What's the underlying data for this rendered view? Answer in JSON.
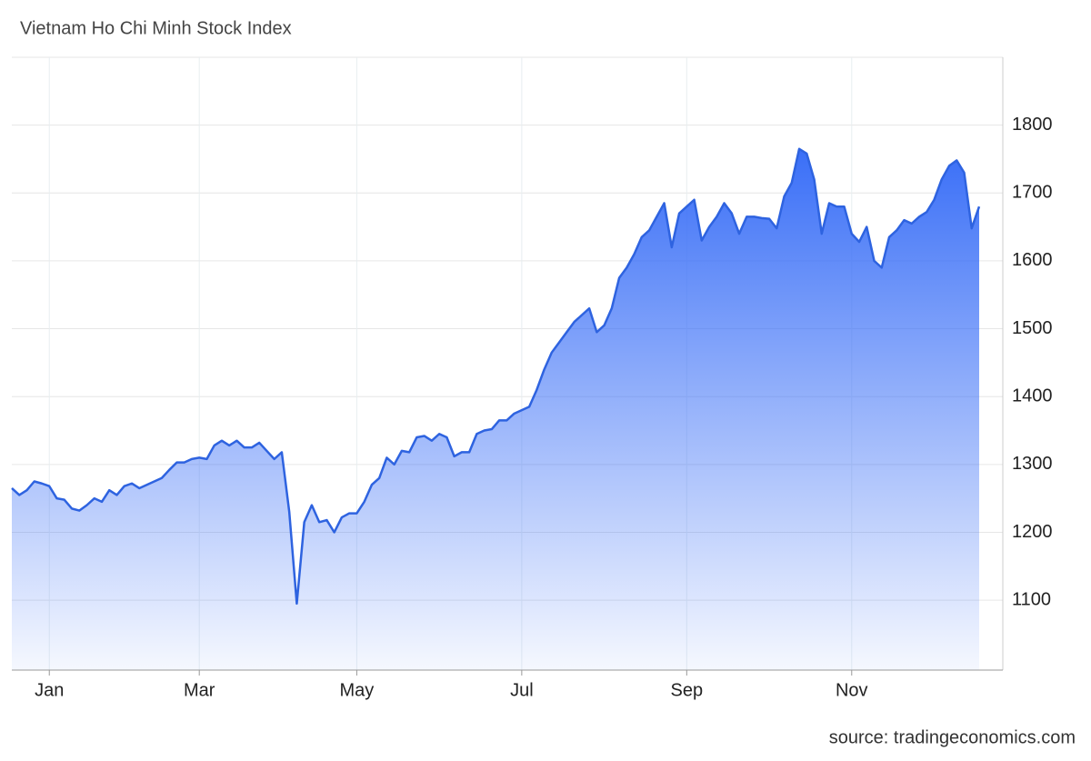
{
  "chart_data": {
    "type": "area",
    "title": "Vietnam Ho Chi Minh Stock Index",
    "source": "source: tradingeconomics.com",
    "categories": [
      null,
      null,
      null,
      null,
      null,
      "Jan",
      null,
      null,
      null,
      null,
      null,
      null,
      null,
      null,
      null,
      null,
      null,
      null,
      null,
      null,
      null,
      null,
      null,
      null,
      null,
      "Mar",
      null,
      null,
      null,
      null,
      null,
      null,
      null,
      null,
      null,
      null,
      null,
      null,
      null,
      null,
      null,
      null,
      null,
      null,
      null,
      null,
      "May",
      null,
      null,
      null,
      null,
      null,
      null,
      null,
      null,
      null,
      null,
      null,
      null,
      null,
      null,
      null,
      null,
      null,
      null,
      null,
      null,
      null,
      "Jul",
      null,
      null,
      null,
      null,
      null,
      null,
      null,
      null,
      null,
      null,
      null,
      null,
      null,
      null,
      null,
      null,
      null,
      null,
      null,
      null,
      null,
      "Sep",
      null,
      null,
      null,
      null,
      null,
      null,
      null,
      null,
      null,
      null,
      null,
      null,
      null,
      null,
      null,
      null,
      null,
      null,
      null,
      null,
      null,
      "Nov",
      null,
      null,
      null,
      null,
      null,
      null,
      null,
      null,
      null,
      null,
      null,
      null,
      null,
      null,
      null,
      null,
      null
    ],
    "values": [
      1265,
      1255,
      1262,
      1275,
      1272,
      1268,
      1250,
      1248,
      1235,
      1232,
      1240,
      1250,
      1245,
      1262,
      1255,
      1268,
      1272,
      1265,
      1270,
      1275,
      1280,
      1292,
      1303,
      1303,
      1308,
      1310,
      1308,
      1328,
      1335,
      1328,
      1335,
      1325,
      1325,
      1332,
      1320,
      1308,
      1318,
      1230,
      1095,
      1215,
      1240,
      1215,
      1218,
      1200,
      1222,
      1228,
      1228,
      1245,
      1270,
      1280,
      1310,
      1300,
      1320,
      1318,
      1340,
      1342,
      1335,
      1345,
      1340,
      1312,
      1318,
      1318,
      1345,
      1350,
      1352,
      1365,
      1365,
      1375,
      1380,
      1385,
      1410,
      1440,
      1465,
      1480,
      1495,
      1510,
      1520,
      1530,
      1495,
      1505,
      1530,
      1575,
      1590,
      1610,
      1635,
      1645,
      1665,
      1685,
      1620,
      1670,
      1680,
      1690,
      1630,
      1650,
      1665,
      1685,
      1670,
      1640,
      1665,
      1665,
      1663,
      1662,
      1648,
      1695,
      1715,
      1765,
      1758,
      1720,
      1640,
      1685,
      1680,
      1680,
      1640,
      1628,
      1650,
      1600,
      1590,
      1635,
      1645,
      1660,
      1655,
      1665,
      1672,
      1690,
      1720,
      1740,
      1748,
      1730,
      1648,
      1680
    ],
    "color": "#2e63e0",
    "fill_color": "#3a6ff7",
    "ylim": [
      997,
      1900
    ],
    "yticks": [
      1100,
      1200,
      1300,
      1400,
      1500,
      1600,
      1700,
      1800
    ],
    "grid": true,
    "y_axis_side": "right"
  }
}
